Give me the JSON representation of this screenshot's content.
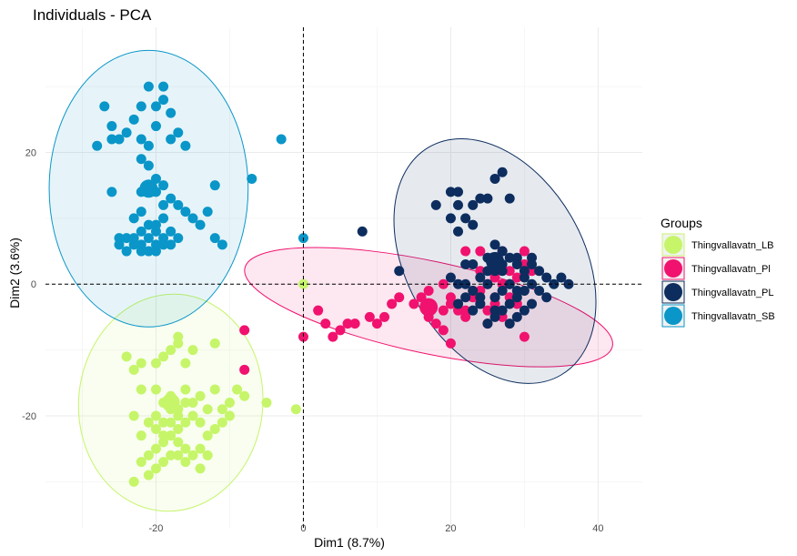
{
  "chart_data": {
    "type": "scatter",
    "title": "Individuals - PCA",
    "xlabel": "Dim1 (8.7%)",
    "ylabel": "Dim2 (3.6%)",
    "xlim": [
      -35,
      46
    ],
    "ylim": [
      -37,
      39
    ],
    "x_ticks": [
      -20,
      0,
      20,
      40
    ],
    "y_ticks": [
      -20,
      0,
      20
    ],
    "x_tick_labels": [
      "-20",
      "0",
      "20",
      "40"
    ],
    "y_tick_labels": [
      "-20",
      "0",
      "20"
    ],
    "grid": true,
    "reference_lines": {
      "x": 0,
      "y": 0,
      "style": "dashed"
    },
    "legend": {
      "title": "Groups",
      "placement": "right"
    },
    "series": [
      {
        "name": "Thingvallavatn_LB",
        "color": "#c6f56a",
        "centroid": [
          -18,
          -18
        ],
        "ellipse": {
          "cx": -18,
          "cy": -18,
          "rx": 25,
          "ry": 33,
          "angle": 5
        },
        "points": [
          [
            -24,
            -11
          ],
          [
            -22,
            -12
          ],
          [
            -23,
            -13
          ],
          [
            -20,
            -12
          ],
          [
            -19,
            -11
          ],
          [
            -18,
            -10
          ],
          [
            -17,
            -9
          ],
          [
            -15,
            -10
          ],
          [
            -17,
            -8
          ],
          [
            -16,
            -12
          ],
          [
            -12,
            -9
          ],
          [
            -22,
            -16
          ],
          [
            -20,
            -16
          ],
          [
            -19,
            -18
          ],
          [
            -18,
            -17
          ],
          [
            -17,
            -19
          ],
          [
            -16,
            -18
          ],
          [
            -15,
            -20
          ],
          [
            -14,
            -21
          ],
          [
            -16,
            -21
          ],
          [
            -17,
            -22
          ],
          [
            -18,
            -23
          ],
          [
            -19,
            -24
          ],
          [
            -20,
            -25
          ],
          [
            -21,
            -26
          ],
          [
            -20,
            -28
          ],
          [
            -22,
            -27
          ],
          [
            -21,
            -29
          ],
          [
            -19,
            -23
          ],
          [
            -17,
            -26
          ],
          [
            -16,
            -25
          ],
          [
            -15,
            -26
          ],
          [
            -14,
            -25
          ],
          [
            -13,
            -23
          ],
          [
            -12,
            -22
          ],
          [
            -11,
            -19
          ],
          [
            -10,
            -18
          ],
          [
            -9,
            -16
          ],
          [
            -8,
            -17
          ],
          [
            -5,
            -18
          ],
          [
            -1,
            -19
          ],
          [
            0,
            0
          ],
          [
            -21,
            -21
          ],
          [
            -20,
            -20
          ],
          [
            -23,
            -20
          ],
          [
            -18,
            -21
          ],
          [
            -17,
            -20
          ],
          [
            -15,
            -18
          ],
          [
            -14,
            -17
          ],
          [
            -13,
            -19
          ],
          [
            -11,
            -21
          ],
          [
            -12,
            -16
          ],
          [
            -10,
            -20
          ],
          [
            -16,
            -16
          ],
          [
            -18,
            -19
          ],
          [
            -19,
            -21
          ],
          [
            -20,
            -22
          ],
          [
            -22,
            -23
          ],
          [
            -17,
            -24
          ],
          [
            -16,
            -27
          ],
          [
            -18,
            -26
          ],
          [
            -23,
            -30
          ],
          [
            -19,
            -27
          ],
          [
            -14,
            -28
          ],
          [
            -13,
            -26
          ]
        ]
      },
      {
        "name": "Thingvallavatn_Pl",
        "color": "#f0126e",
        "centroid": [
          17,
          -3.5
        ],
        "ellipse": {
          "cx": 17,
          "cy": -3.5,
          "rx": 51,
          "ry": 14,
          "angle": 12
        },
        "points": [
          [
            -8,
            -7
          ],
          [
            -8,
            -13
          ],
          [
            0,
            -8
          ],
          [
            2,
            -4
          ],
          [
            3,
            -6
          ],
          [
            4,
            -8
          ],
          [
            5,
            -7
          ],
          [
            6,
            -6
          ],
          [
            7,
            -6
          ],
          [
            9,
            -5
          ],
          [
            10,
            -6
          ],
          [
            11,
            -5
          ],
          [
            12,
            -3
          ],
          [
            13,
            -2
          ],
          [
            15,
            -3
          ],
          [
            16,
            -2
          ],
          [
            17,
            -1
          ],
          [
            17,
            -5
          ],
          [
            18,
            -6
          ],
          [
            19,
            -7
          ],
          [
            19,
            -4
          ],
          [
            20,
            -3
          ],
          [
            20,
            -9
          ],
          [
            21,
            -3
          ],
          [
            22,
            -4
          ],
          [
            23,
            -2
          ],
          [
            24,
            -1
          ],
          [
            24,
            -3
          ],
          [
            25,
            0
          ],
          [
            25,
            -4
          ],
          [
            26,
            1
          ],
          [
            26,
            -3
          ],
          [
            27,
            0
          ],
          [
            27,
            -5
          ],
          [
            28,
            2
          ],
          [
            28,
            -2
          ],
          [
            29,
            1
          ],
          [
            30,
            3
          ],
          [
            30,
            5
          ],
          [
            31,
            2
          ],
          [
            30,
            -8
          ],
          [
            24,
            5
          ],
          [
            27,
            5
          ],
          [
            22,
            5
          ],
          [
            21,
            -4
          ],
          [
            20,
            -2
          ],
          [
            19,
            0
          ],
          [
            23,
            -1
          ],
          [
            26,
            -2
          ],
          [
            28,
            0
          ],
          [
            29,
            -3
          ],
          [
            22,
            -5
          ],
          [
            25,
            -6
          ],
          [
            26,
            2
          ],
          [
            24,
            2
          ]
        ]
      },
      {
        "name": "Thingvallavatn_PL",
        "color": "#0d2d5e",
        "centroid": [
          26,
          3.5
        ],
        "ellipse": {
          "cx": 26,
          "cy": 3.5,
          "rx": 24,
          "ry": 40,
          "angle": -30
        },
        "points": [
          [
            8,
            8
          ],
          [
            13,
            2
          ],
          [
            18,
            12
          ],
          [
            20,
            14
          ],
          [
            20,
            10
          ],
          [
            21,
            12
          ],
          [
            21,
            8
          ],
          [
            21,
            14
          ],
          [
            22,
            10
          ],
          [
            23,
            9
          ],
          [
            23,
            12
          ],
          [
            24,
            13
          ],
          [
            25,
            13
          ],
          [
            26,
            16
          ],
          [
            27,
            17
          ],
          [
            28,
            13
          ],
          [
            20,
            1
          ],
          [
            21,
            0
          ],
          [
            22,
            3
          ],
          [
            22,
            0
          ],
          [
            23,
            -1
          ],
          [
            23,
            3
          ],
          [
            24,
            -2
          ],
          [
            24,
            1
          ],
          [
            25,
            0
          ],
          [
            25,
            2
          ],
          [
            25,
            4
          ],
          [
            26,
            -2
          ],
          [
            26,
            -4
          ],
          [
            26,
            2
          ],
          [
            27,
            3
          ],
          [
            27,
            -1
          ],
          [
            27,
            5
          ],
          [
            28,
            4
          ],
          [
            28,
            0
          ],
          [
            29,
            -1
          ],
          [
            29,
            3
          ],
          [
            29,
            -2
          ],
          [
            30,
            -1
          ],
          [
            30,
            1
          ],
          [
            30,
            -4
          ],
          [
            31,
            0
          ],
          [
            31,
            4
          ],
          [
            32,
            2
          ],
          [
            32,
            -1
          ],
          [
            33,
            -2
          ],
          [
            33,
            1
          ],
          [
            34,
            0
          ],
          [
            35,
            1
          ],
          [
            36,
            0
          ],
          [
            31,
            -3
          ],
          [
            29,
            -5
          ],
          [
            28,
            -6
          ],
          [
            27,
            -4
          ],
          [
            26,
            -5
          ],
          [
            25,
            -6
          ],
          [
            24,
            -3
          ],
          [
            23,
            -4
          ],
          [
            22,
            -2
          ],
          [
            21,
            -3
          ],
          [
            28,
            -3
          ],
          [
            26,
            6
          ],
          [
            27,
            2
          ],
          [
            29,
            4
          ],
          [
            30,
            2
          ],
          [
            31,
            3
          ]
        ]
      },
      {
        "name": "Thingvallavatn_SB",
        "color": "#0a96c8",
        "centroid": [
          -21,
          14.5
        ],
        "ellipse": {
          "cx": -21,
          "cy": 14.5,
          "rx": 27,
          "ry": 42,
          "angle": 0
        },
        "points": [
          [
            -28,
            21
          ],
          [
            -27,
            27
          ],
          [
            -26,
            24
          ],
          [
            -26,
            22
          ],
          [
            -25,
            22
          ],
          [
            -24,
            23
          ],
          [
            -23,
            25
          ],
          [
            -22,
            27
          ],
          [
            -22,
            22
          ],
          [
            -21,
            30
          ],
          [
            -20,
            27
          ],
          [
            -19,
            30
          ],
          [
            -19,
            28
          ],
          [
            -18,
            26
          ],
          [
            -17,
            23
          ],
          [
            -16,
            21
          ],
          [
            -18,
            22
          ],
          [
            -20,
            24
          ],
          [
            -21,
            21
          ],
          [
            -22,
            19
          ],
          [
            -21,
            18
          ],
          [
            -20,
            16
          ],
          [
            -21,
            15
          ],
          [
            -22,
            14
          ],
          [
            -20,
            14
          ],
          [
            -19,
            15
          ],
          [
            -18,
            13
          ],
          [
            -17,
            12
          ],
          [
            -16,
            11
          ],
          [
            -15,
            10
          ],
          [
            -14,
            9
          ],
          [
            -13,
            11
          ],
          [
            -12,
            15
          ],
          [
            -12,
            7
          ],
          [
            -11,
            6
          ],
          [
            -7,
            16
          ],
          [
            -3,
            22
          ],
          [
            0,
            7
          ],
          [
            -26,
            14
          ],
          [
            -25,
            7
          ],
          [
            -25,
            6
          ],
          [
            -24,
            5
          ],
          [
            -23,
            7
          ],
          [
            -22,
            6
          ],
          [
            -21,
            5
          ],
          [
            -20,
            6
          ],
          [
            -19,
            7
          ],
          [
            -18,
            8
          ],
          [
            -17,
            7
          ],
          [
            -22,
            8
          ],
          [
            -21,
            9
          ],
          [
            -20,
            9
          ],
          [
            -19,
            10
          ],
          [
            -24,
            7
          ],
          [
            -23,
            6
          ],
          [
            -22,
            5
          ],
          [
            -21,
            7
          ],
          [
            -20,
            5
          ],
          [
            -19,
            6
          ],
          [
            -18,
            6
          ],
          [
            -23,
            10
          ],
          [
            -20,
            8
          ],
          [
            -22,
            11
          ],
          [
            -19,
            12
          ]
        ]
      }
    ]
  }
}
